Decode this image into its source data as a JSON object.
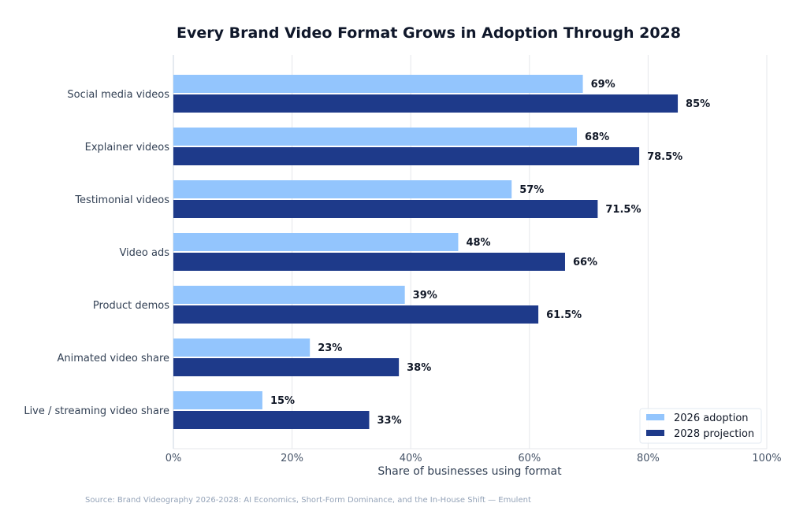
{
  "chart_data": {
    "type": "bar",
    "orientation": "horizontal",
    "title": "Every Brand Video Format Grows in Adoption Through 2028",
    "xlabel": "Share of businesses using format",
    "ylabel": "",
    "xlim": [
      0,
      100
    ],
    "xticks": [
      "0%",
      "20%",
      "40%",
      "60%",
      "80%",
      "100%"
    ],
    "grid": "vertical",
    "legend_position": "bottom-right",
    "categories": [
      "Social media videos",
      "Explainer videos",
      "Testimonial videos",
      "Video ads",
      "Product demos",
      "Animated video share",
      "Live / streaming video share"
    ],
    "series": [
      {
        "name": "2026 adoption",
        "color": "#93c5fd",
        "values": [
          69,
          68,
          57,
          48,
          39,
          23,
          15
        ],
        "labels": [
          "69%",
          "68%",
          "57%",
          "48%",
          "39%",
          "23%",
          "15%"
        ]
      },
      {
        "name": "2028 projection",
        "color": "#1e3a8a",
        "values": [
          85,
          78.5,
          71.5,
          66,
          61.5,
          38,
          33
        ],
        "labels": [
          "85%",
          "78.5%",
          "71.5%",
          "66%",
          "61.5%",
          "38%",
          "33%"
        ]
      }
    ],
    "source": "Source: Brand Videography 2026-2028: AI Economics, Short-Form Dominance, and the In-House Shift — Emulent"
  }
}
